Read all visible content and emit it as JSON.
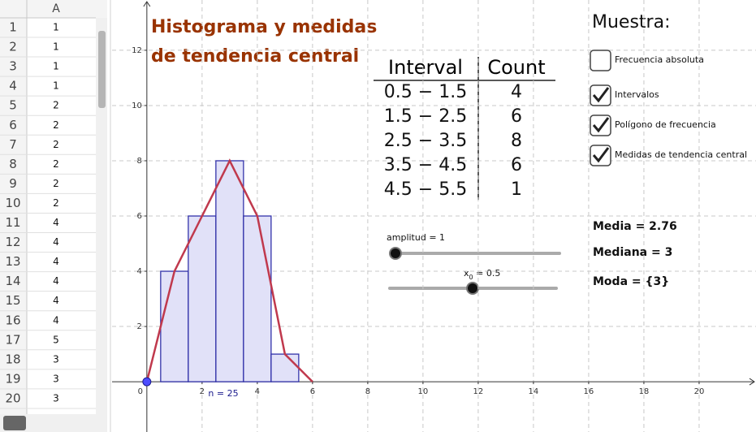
{
  "spreadsheet": {
    "column": "A",
    "row_numbers": [
      1,
      2,
      3,
      4,
      5,
      6,
      7,
      8,
      9,
      10,
      11,
      12,
      13,
      14,
      15,
      16,
      17,
      18,
      19,
      20
    ],
    "values": [
      1,
      1,
      1,
      1,
      2,
      2,
      2,
      2,
      2,
      2,
      4,
      4,
      4,
      4,
      4,
      4,
      5,
      3,
      3,
      3
    ]
  },
  "chart_data": {
    "type": "histogram",
    "title": [
      "Histograma y medidas",
      "de tendencia central"
    ],
    "bins": [
      0.5,
      1.5,
      2.5,
      3.5,
      4.5,
      5.5
    ],
    "counts": [
      4,
      6,
      8,
      6,
      1
    ],
    "color": "#e1e1f8",
    "edge_color": "#3333aa",
    "polygon": {
      "x": [
        0,
        1,
        2,
        3,
        4,
        5,
        6
      ],
      "values": [
        0,
        4,
        6,
        8,
        6,
        1,
        0
      ],
      "color": "#c0394d"
    },
    "annotation": "n = 25",
    "xlim": [
      -1.26,
      22.06
    ],
    "ylim": [
      -1.82,
      13.82
    ],
    "xticks": [
      0,
      2,
      4,
      6,
      8,
      10,
      12,
      14,
      16,
      18,
      20
    ],
    "yticks": [
      2,
      4,
      6,
      8,
      10,
      12
    ],
    "grid": true
  },
  "table": {
    "header": [
      "Interval",
      "Count"
    ],
    "rows": [
      [
        "0.5 − 1.5",
        4
      ],
      [
        "1.5 − 2.5",
        6
      ],
      [
        "2.5 − 3.5",
        8
      ],
      [
        "3.5 − 4.5",
        6
      ],
      [
        "4.5 − 5.5",
        1
      ]
    ]
  },
  "panel": {
    "heading": "Muestra:",
    "checkboxes": [
      {
        "label": "Frecuencia absoluta",
        "checked": false
      },
      {
        "label": "Intervalos",
        "checked": true
      },
      {
        "label": "Polígono de frecuencia",
        "checked": true
      },
      {
        "label": "Medidas de tendencia central",
        "checked": true
      }
    ]
  },
  "measures": [
    "Media = 2.76",
    "Mediana = 3",
    "Moda = {3}"
  ],
  "sliders": [
    {
      "label": "amplitud = 1"
    },
    {
      "name": "x",
      "subscript": "0",
      "text": " = 0.5"
    }
  ]
}
